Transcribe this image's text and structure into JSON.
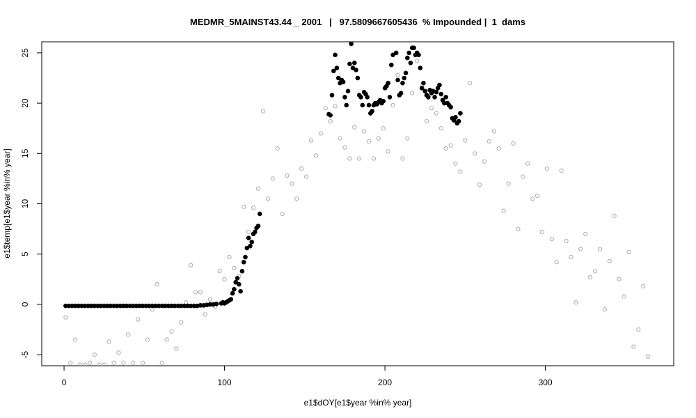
{
  "chart_data": {
    "type": "scatter",
    "title": "MEDMR_5MAINST43.44 _ 2001   |   97.5809667605436  % Impounded |  1  dams",
    "xlabel": "e1$dOY[e1$year %in% year]",
    "ylabel": "e1$temp[e1$year %in% year]",
    "xlim": [
      -13.9,
      380
    ],
    "ylim": [
      -6.1,
      26.1
    ],
    "xticks": [
      0,
      100,
      200,
      300
    ],
    "yticks": [
      -5,
      0,
      5,
      10,
      15,
      20,
      25
    ],
    "series": [
      {
        "color": "#aaaaaa",
        "filled": false,
        "x": [
          1,
          4,
          7,
          10,
          13,
          16,
          19,
          22,
          25,
          28,
          31,
          34,
          37,
          40,
          43,
          46,
          49,
          52,
          55,
          58,
          61,
          64,
          67,
          70,
          73,
          76,
          79,
          82,
          85,
          88,
          91,
          94,
          97,
          100,
          103,
          106,
          109,
          112,
          115,
          118,
          121,
          124,
          127,
          130,
          133,
          136,
          139,
          142,
          145,
          148,
          151,
          154,
          157,
          160,
          163,
          166,
          169,
          172,
          175,
          178,
          181,
          184,
          187,
          190,
          193,
          196,
          199,
          202,
          205,
          208,
          211,
          214,
          217,
          220,
          223,
          226,
          229,
          232,
          235,
          238,
          241,
          244,
          247,
          250,
          253,
          256,
          259,
          262,
          265,
          268,
          271,
          274,
          277,
          280,
          283,
          286,
          289,
          292,
          295,
          298,
          301,
          304,
          307,
          310,
          313,
          316,
          319,
          322,
          325,
          328,
          331,
          334,
          337,
          340,
          343,
          346,
          349,
          352,
          355,
          358,
          361,
          364
        ],
        "values": [
          -1.3,
          -5.8,
          -3.5,
          -6,
          -6,
          -5.8,
          -5,
          -6,
          -6,
          -3.7,
          -5.8,
          -4.8,
          -5.8,
          -3,
          -5.8,
          -1.5,
          -5.8,
          -3.5,
          -0.5,
          2,
          -5.8,
          -3.5,
          -2.7,
          -4.4,
          -1.8,
          0.2,
          3.9,
          1.2,
          1.2,
          -1,
          0.5,
          -0.2,
          3.3,
          2.5,
          4.7,
          3.6,
          2.8,
          9.7,
          7.2,
          9.6,
          11.5,
          19.2,
          10.5,
          12.5,
          15.5,
          9,
          12.8,
          12,
          10.5,
          13.5,
          12.7,
          16.3,
          14.8,
          17,
          19.5,
          18.2,
          19.7,
          16.5,
          15.6,
          14.5,
          17.6,
          14.5,
          17.2,
          16.2,
          14.5,
          16.5,
          17.5,
          15.2,
          19.8,
          22.8,
          14.5,
          16.5,
          21,
          24.2,
          21.8,
          18.2,
          19.5,
          19,
          17.5,
          15.5,
          15.8,
          14,
          13.2,
          16.3,
          22,
          15,
          11.9,
          14.2,
          16.2,
          17.2,
          15.5,
          9.3,
          12,
          16,
          7.5,
          12.7,
          14,
          10.5,
          10.8,
          7.2,
          13.5,
          6.5,
          4.2,
          13.3,
          6.3,
          4.7,
          0.2,
          5.5,
          7,
          2.7,
          3.3,
          5.5,
          -0.5,
          4.3,
          8.8,
          2.5,
          0.8,
          5.2,
          -4.2,
          -2.5,
          1.8,
          -5.2
        ]
      },
      {
        "color": "#000000",
        "filled": true,
        "x": [
          1,
          3,
          5,
          7,
          9,
          11,
          13,
          15,
          17,
          19,
          21,
          23,
          25,
          27,
          29,
          31,
          33,
          35,
          37,
          39,
          41,
          43,
          45,
          47,
          49,
          51,
          53,
          55,
          57,
          59,
          61,
          63,
          65,
          67,
          69,
          71,
          73,
          75,
          77,
          79,
          81,
          83,
          85,
          87,
          89,
          91,
          93,
          95,
          98,
          99,
          100,
          101,
          102,
          103,
          104,
          105,
          106,
          107,
          108,
          109,
          110,
          111,
          112,
          113,
          114,
          115,
          116,
          117,
          118,
          119,
          120,
          121,
          122,
          165,
          166,
          167,
          168,
          169,
          170,
          171,
          172,
          173,
          174,
          175,
          176,
          177,
          178,
          179,
          180,
          181,
          182,
          183,
          184,
          185,
          186,
          187,
          188,
          189,
          190,
          191,
          192,
          193,
          194,
          195,
          196,
          197,
          198,
          199,
          200,
          201,
          202,
          203,
          204,
          205,
          206,
          207,
          208,
          209,
          210,
          211,
          212,
          213,
          214,
          215,
          216,
          217,
          218,
          219,
          220,
          221,
          222,
          223,
          224,
          225,
          226,
          227,
          228,
          229,
          230,
          231,
          232,
          233,
          234,
          235,
          236,
          237,
          238,
          239,
          240,
          241,
          242,
          243,
          244,
          245,
          246,
          247
        ],
        "values": [
          -0.15,
          -0.15,
          -0.15,
          -0.15,
          -0.15,
          -0.15,
          -0.15,
          -0.15,
          -0.15,
          -0.15,
          -0.15,
          -0.15,
          -0.15,
          -0.15,
          -0.15,
          -0.15,
          -0.15,
          -0.15,
          -0.15,
          -0.15,
          -0.15,
          -0.15,
          -0.15,
          -0.15,
          -0.15,
          -0.15,
          -0.15,
          -0.15,
          -0.15,
          -0.15,
          -0.15,
          -0.15,
          -0.15,
          -0.15,
          -0.15,
          -0.15,
          -0.15,
          -0.15,
          -0.15,
          -0.15,
          -0.15,
          -0.15,
          -0.1,
          -0.1,
          -0.05,
          0,
          0,
          0.05,
          0.1,
          0.2,
          0.1,
          0.2,
          0.3,
          0.4,
          0.5,
          1.1,
          1.5,
          2.2,
          2.6,
          2,
          1.3,
          3.3,
          4.2,
          4.7,
          5.6,
          6.6,
          5.8,
          6.2,
          7,
          7.2,
          7.6,
          7.8,
          9,
          18.9,
          18.8,
          20.8,
          23.2,
          24.8,
          23.5,
          22.5,
          22,
          22.3,
          22.1,
          20.6,
          19.8,
          21.2,
          23.9,
          25.9,
          23.5,
          24,
          23.3,
          22.5,
          20.8,
          20.6,
          19.8,
          21.1,
          20.9,
          20.6,
          19.8,
          19,
          19.2,
          19.8,
          20,
          19.9,
          20.1,
          20.3,
          20,
          20.2,
          21.5,
          21.7,
          22,
          20.6,
          23.8,
          24.8,
          26.5,
          25,
          22.3,
          20.8,
          21,
          22,
          22.5,
          23,
          24.5,
          25,
          24,
          25.5,
          25.5,
          24.8,
          25,
          24.8,
          23.5,
          21.5,
          22,
          21.2,
          20.8,
          20.6,
          21.3,
          21,
          21.2,
          20.6,
          21.1,
          21.5,
          21.8,
          20.9,
          20.3,
          20,
          20.6,
          20,
          19.8,
          19.6,
          18.5,
          18.3,
          18.6,
          18,
          18.2,
          19
        ]
      }
    ]
  }
}
